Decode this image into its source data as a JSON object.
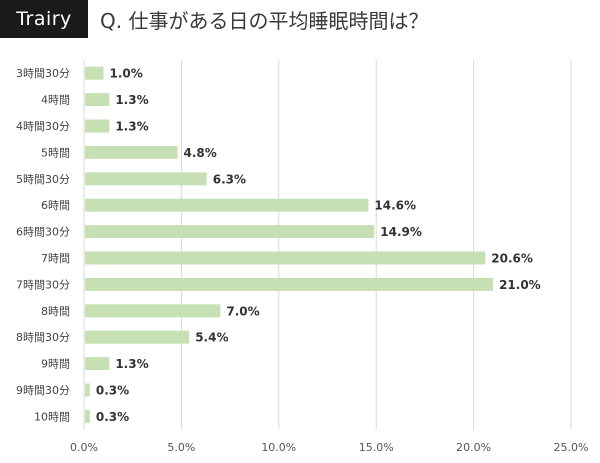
{
  "brand": {
    "logo_text": "Trairy"
  },
  "question": "Q. 仕事がある日の平均睡眠時間は？",
  "colors": {
    "bar": "#c6e0b4",
    "grid": "#d9d9d9",
    "logo_bg": "#1a1a1a"
  },
  "chart_data": {
    "type": "bar",
    "orientation": "horizontal",
    "title": "Q. 仕事がある日の平均睡眠時間は？",
    "categories": [
      "3時間30分",
      "4時間",
      "4時間30分",
      "5時間",
      "5時間30分",
      "6時間",
      "6時間30分",
      "7時間",
      "7時間30分",
      "8時間",
      "8時間30分",
      "9時間",
      "9時間30分",
      "10時間"
    ],
    "values": [
      1.0,
      1.3,
      1.3,
      4.8,
      6.3,
      14.6,
      14.9,
      20.6,
      21.0,
      7.0,
      5.4,
      1.3,
      0.3,
      0.3
    ],
    "data_labels": [
      "1.0%",
      "1.3%",
      "1.3%",
      "4.8%",
      "6.3%",
      "14.6%",
      "14.9%",
      "20.6%",
      "21.0%",
      "7.0%",
      "5.4%",
      "1.3%",
      "0.3%",
      "0.3%"
    ],
    "xlim": [
      0,
      25
    ],
    "xticks": [
      "0.0%",
      "5.0%",
      "10.0%",
      "15.0%",
      "20.0%",
      "25.0%"
    ],
    "grid": "vertical",
    "legend": "none"
  }
}
